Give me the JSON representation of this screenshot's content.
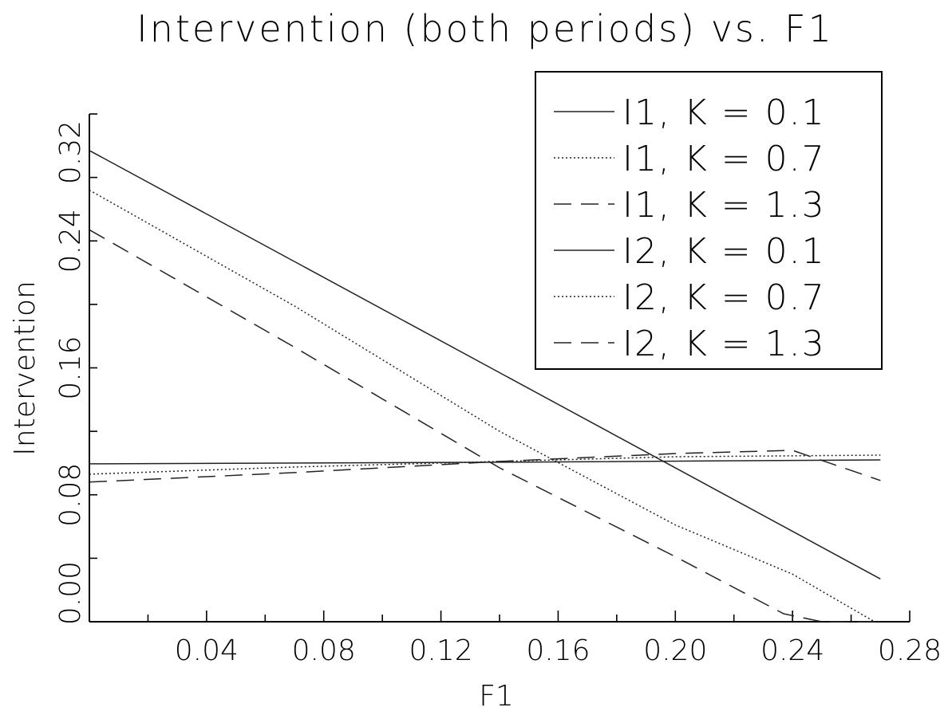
{
  "chart_data": {
    "type": "line",
    "title": "Intervention (both periods) vs. F1",
    "xlabel": "F1",
    "ylabel": "Intervention",
    "xlim": [
      0.0,
      0.28
    ],
    "ylim": [
      0.0,
      0.32
    ],
    "xticks": [
      0.04,
      0.08,
      0.12,
      0.16,
      0.2,
      0.24,
      0.28
    ],
    "xtick_labels": [
      "0.04",
      "0.08",
      "0.12",
      "0.16",
      "0.20",
      "0.24",
      "0.28"
    ],
    "yticks": [
      0.0,
      0.08,
      0.16,
      0.24,
      0.32
    ],
    "ytick_labels": [
      "0.00",
      "0.08",
      "0.16",
      "0.24",
      "0.32"
    ],
    "grid": false,
    "legend_position": "top-right",
    "series": [
      {
        "name": "I1, K = 0.1",
        "style": "solid",
        "x": [
          0.0,
          0.27
        ],
        "y": [
          0.297,
          0.027
        ]
      },
      {
        "name": "I1, K = 0.7",
        "style": "dotted",
        "x": [
          0.0,
          0.07,
          0.14,
          0.2,
          0.24,
          0.268
        ],
        "y": [
          0.272,
          0.199,
          0.12,
          0.061,
          0.03,
          0.0
        ]
      },
      {
        "name": "I1, K = 1.3",
        "style": "dashed",
        "x": [
          0.0,
          0.07,
          0.14,
          0.2,
          0.237,
          0.25,
          0.27
        ],
        "y": [
          0.247,
          0.173,
          0.097,
          0.041,
          0.005,
          0.0,
          0.0
        ]
      },
      {
        "name": "I2, K = 0.1",
        "style": "solid",
        "x": [
          0.0,
          0.14,
          0.27
        ],
        "y": [
          0.0995,
          0.1005,
          0.102
        ]
      },
      {
        "name": "I2, K = 0.7",
        "style": "dotted",
        "x": [
          0.0,
          0.07,
          0.14,
          0.2,
          0.27
        ],
        "y": [
          0.093,
          0.0975,
          0.101,
          0.104,
          0.105
        ]
      },
      {
        "name": "I2, K = 1.3",
        "style": "dashed",
        "x": [
          0.0,
          0.07,
          0.14,
          0.2,
          0.24,
          0.27
        ],
        "y": [
          0.088,
          0.094,
          0.101,
          0.106,
          0.108,
          0.089
        ]
      }
    ]
  }
}
